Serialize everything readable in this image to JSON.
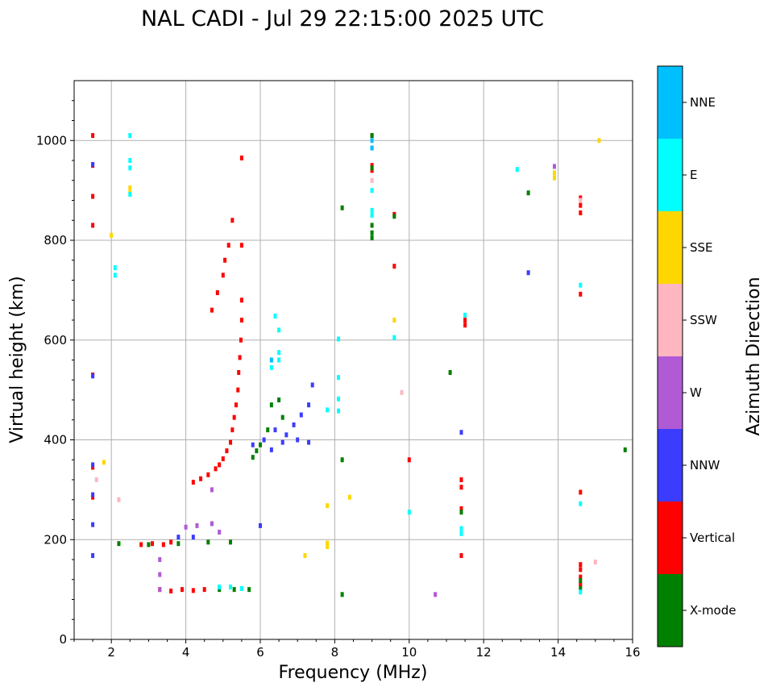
{
  "chart_data": {
    "type": "scatter",
    "title": "NAL CADI - Jul 29 22:15:00 2025 UTC",
    "xlabel": "Frequency (MHz)",
    "ylabel": "Virtual height (km)",
    "xlim": [
      1,
      16
    ],
    "ylim": [
      0,
      1120
    ],
    "xticks": [
      2,
      4,
      6,
      8,
      10,
      12,
      14,
      16
    ],
    "yticks": [
      0,
      200,
      400,
      600,
      800,
      1000
    ],
    "grid": true,
    "colorbar": {
      "label": "Azimuth Direction",
      "position": "right",
      "categories": [
        {
          "name": "X-mode",
          "color": "#008000"
        },
        {
          "name": "Vertical",
          "color": "#ff0000"
        },
        {
          "name": "NNW",
          "color": "#3c3cff"
        },
        {
          "name": "W",
          "color": "#b05ad6"
        },
        {
          "name": "SSW",
          "color": "#ffb6c1"
        },
        {
          "name": "SSE",
          "color": "#ffd700"
        },
        {
          "name": "E",
          "color": "#00ffff"
        },
        {
          "name": "NNE",
          "color": "#00bfff"
        }
      ]
    },
    "series": [
      {
        "name": "Vertical",
        "points": [
          [
            1.5,
            1010
          ],
          [
            1.5,
            950
          ],
          [
            1.5,
            888
          ],
          [
            1.5,
            830
          ],
          [
            1.5,
            530
          ],
          [
            1.5,
            345
          ],
          [
            1.5,
            285
          ],
          [
            3.3,
            100
          ],
          [
            3.6,
            97
          ],
          [
            3.9,
            100
          ],
          [
            4.2,
            98
          ],
          [
            4.5,
            100
          ],
          [
            2.8,
            190
          ],
          [
            3.1,
            192
          ],
          [
            3.4,
            190
          ],
          [
            3.6,
            195
          ],
          [
            4.2,
            315
          ],
          [
            4.4,
            322
          ],
          [
            4.6,
            330
          ],
          [
            4.8,
            342
          ],
          [
            4.9,
            350
          ],
          [
            5.0,
            362
          ],
          [
            5.1,
            378
          ],
          [
            5.2,
            395
          ],
          [
            5.25,
            420
          ],
          [
            5.3,
            445
          ],
          [
            5.35,
            470
          ],
          [
            5.4,
            500
          ],
          [
            5.42,
            535
          ],
          [
            5.45,
            565
          ],
          [
            5.48,
            600
          ],
          [
            5.5,
            640
          ],
          [
            5.5,
            680
          ],
          [
            4.7,
            660
          ],
          [
            4.85,
            695
          ],
          [
            5.0,
            730
          ],
          [
            5.05,
            760
          ],
          [
            5.15,
            790
          ],
          [
            5.25,
            840
          ],
          [
            5.5,
            965
          ],
          [
            5.5,
            790
          ],
          [
            9.0,
            1010
          ],
          [
            9.0,
            950
          ],
          [
            9.0,
            940
          ],
          [
            9.6,
            852
          ],
          [
            9.6,
            748
          ],
          [
            10.0,
            360
          ],
          [
            11.5,
            640
          ],
          [
            11.5,
            630
          ],
          [
            11.4,
            320
          ],
          [
            11.4,
            305
          ],
          [
            11.4,
            262
          ],
          [
            11.4,
            168
          ],
          [
            14.6,
            885
          ],
          [
            14.6,
            870
          ],
          [
            14.6,
            855
          ],
          [
            14.6,
            692
          ],
          [
            14.6,
            295
          ],
          [
            14.6,
            150
          ],
          [
            14.6,
            140
          ],
          [
            14.6,
            125
          ],
          [
            14.6,
            110
          ]
        ]
      },
      {
        "name": "X-mode",
        "points": [
          [
            2.2,
            192
          ],
          [
            3.0,
            190
          ],
          [
            3.8,
            192
          ],
          [
            4.6,
            195
          ],
          [
            5.2,
            195
          ],
          [
            4.9,
            100
          ],
          [
            5.3,
            100
          ],
          [
            5.7,
            100
          ],
          [
            5.8,
            365
          ],
          [
            5.9,
            378
          ],
          [
            6.0,
            390
          ],
          [
            6.2,
            420
          ],
          [
            6.3,
            470
          ],
          [
            6.5,
            480
          ],
          [
            6.6,
            445
          ],
          [
            8.2,
            865
          ],
          [
            8.2,
            360
          ],
          [
            8.2,
            90
          ],
          [
            9.0,
            1010
          ],
          [
            9.0,
            945
          ],
          [
            9.0,
            830
          ],
          [
            9.0,
            815
          ],
          [
            9.0,
            805
          ],
          [
            9.6,
            848
          ],
          [
            11.1,
            535
          ],
          [
            11.4,
            255
          ],
          [
            13.2,
            895
          ],
          [
            14.6,
            118
          ],
          [
            14.6,
            102
          ],
          [
            15.8,
            380
          ]
        ]
      },
      {
        "name": "NNW",
        "points": [
          [
            1.5,
            952
          ],
          [
            1.5,
            528
          ],
          [
            1.5,
            350
          ],
          [
            1.5,
            290
          ],
          [
            1.5,
            230
          ],
          [
            1.5,
            168
          ],
          [
            5.8,
            390
          ],
          [
            6.1,
            400
          ],
          [
            6.4,
            420
          ],
          [
            6.7,
            410
          ],
          [
            6.9,
            430
          ],
          [
            7.1,
            450
          ],
          [
            7.3,
            470
          ],
          [
            7.4,
            510
          ],
          [
            6.3,
            380
          ],
          [
            6.6,
            395
          ],
          [
            7.0,
            400
          ],
          [
            7.3,
            395
          ],
          [
            3.8,
            205
          ],
          [
            4.2,
            205
          ],
          [
            6.0,
            228
          ],
          [
            11.4,
            415
          ],
          [
            13.2,
            735
          ]
        ]
      },
      {
        "name": "W",
        "points": [
          [
            3.3,
            100
          ],
          [
            3.3,
            130
          ],
          [
            3.3,
            160
          ],
          [
            4.0,
            225
          ],
          [
            4.3,
            228
          ],
          [
            4.7,
            232
          ],
          [
            4.9,
            215
          ],
          [
            4.7,
            300
          ],
          [
            10.7,
            90
          ],
          [
            13.9,
            948
          ]
        ]
      },
      {
        "name": "SSW",
        "points": [
          [
            1.6,
            320
          ],
          [
            2.2,
            280
          ],
          [
            9.0,
            920
          ],
          [
            9.8,
            495
          ],
          [
            14.6,
            880
          ],
          [
            15.0,
            155
          ]
        ]
      },
      {
        "name": "SSE",
        "points": [
          [
            1.8,
            355
          ],
          [
            2.0,
            810
          ],
          [
            2.5,
            905
          ],
          [
            2.5,
            895
          ],
          [
            7.2,
            168
          ],
          [
            7.8,
            268
          ],
          [
            7.8,
            193
          ],
          [
            7.8,
            186
          ],
          [
            8.4,
            285
          ],
          [
            9.6,
            640
          ],
          [
            13.9,
            935
          ],
          [
            13.9,
            925
          ],
          [
            15.1,
            1000
          ]
        ]
      },
      {
        "name": "E",
        "points": [
          [
            2.1,
            745
          ],
          [
            2.1,
            730
          ],
          [
            2.5,
            1010
          ],
          [
            2.5,
            960
          ],
          [
            2.5,
            945
          ],
          [
            2.5,
            892
          ],
          [
            6.4,
            648
          ],
          [
            6.5,
            620
          ],
          [
            6.5,
            575
          ],
          [
            6.5,
            560
          ],
          [
            6.3,
            545
          ],
          [
            9.0,
            985
          ],
          [
            9.0,
            900
          ],
          [
            9.0,
            860
          ],
          [
            9.0,
            850
          ],
          [
            9.6,
            605
          ],
          [
            10.0,
            255
          ],
          [
            8.1,
            602
          ],
          [
            8.1,
            525
          ],
          [
            8.1,
            482
          ],
          [
            8.1,
            458
          ],
          [
            7.8,
            460
          ],
          [
            4.9,
            105
          ],
          [
            5.2,
            105
          ],
          [
            5.5,
            102
          ],
          [
            11.5,
            650
          ],
          [
            11.4,
            222
          ],
          [
            11.4,
            212
          ],
          [
            12.9,
            942
          ],
          [
            14.6,
            710
          ],
          [
            14.6,
            272
          ],
          [
            14.6,
            95
          ]
        ]
      },
      {
        "name": "NNE",
        "points": [
          [
            9.0,
            985
          ],
          [
            9.0,
            1000
          ],
          [
            6.3,
            560
          ]
        ]
      }
    ]
  }
}
